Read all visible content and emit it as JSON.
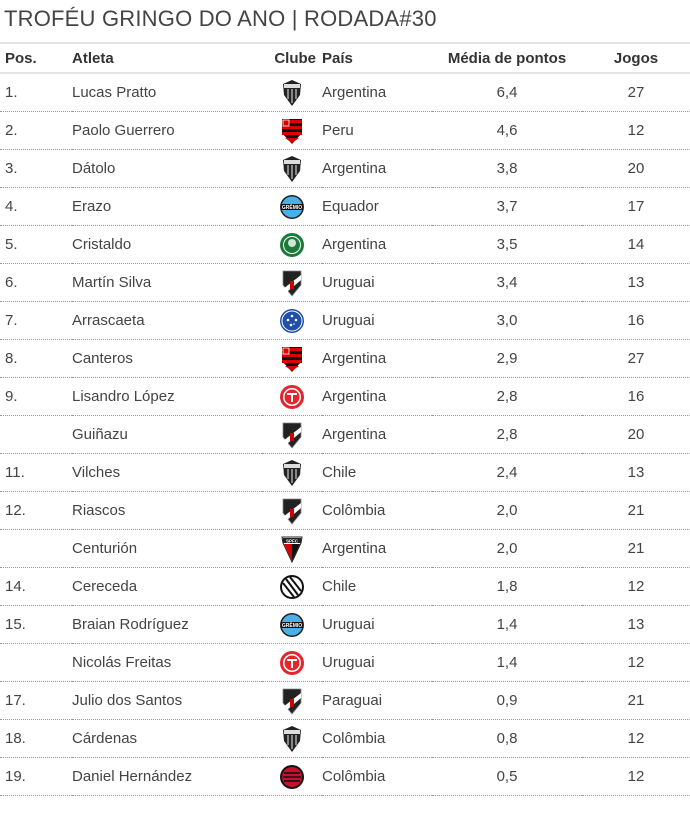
{
  "title": "TROFÉU GRINGO DO ANO | RODADA#30",
  "headers": {
    "pos": "Pos.",
    "athlete": "Atleta",
    "club": "Clube",
    "country": "País",
    "avg": "Média de pontos",
    "games": "Jogos"
  },
  "rows": [
    {
      "pos": "1.",
      "name": "Lucas Pratto",
      "club": "atletico-mg-crest",
      "country": "Argentina",
      "avg": "6,4",
      "games": "27"
    },
    {
      "pos": "2.",
      "name": "Paolo Guerrero",
      "club": "flamengo-crest",
      "country": "Peru",
      "avg": "4,6",
      "games": "12"
    },
    {
      "pos": "3.",
      "name": "Dátolo",
      "club": "atletico-mg-crest",
      "country": "Argentina",
      "avg": "3,8",
      "games": "20"
    },
    {
      "pos": "4.",
      "name": "Erazo",
      "club": "gremio-crest",
      "country": "Equador",
      "avg": "3,7",
      "games": "17"
    },
    {
      "pos": "5.",
      "name": "Cristaldo",
      "club": "palmeiras-crest",
      "country": "Argentina",
      "avg": "3,5",
      "games": "14"
    },
    {
      "pos": "6.",
      "name": "Martín Silva",
      "club": "vasco-crest",
      "country": "Uruguai",
      "avg": "3,4",
      "games": "13"
    },
    {
      "pos": "7.",
      "name": "Arrascaeta",
      "club": "cruzeiro-crest",
      "country": "Uruguai",
      "avg": "3,0",
      "games": "16"
    },
    {
      "pos": "8.",
      "name": "Canteros",
      "club": "flamengo-crest",
      "country": "Argentina",
      "avg": "2,9",
      "games": "27"
    },
    {
      "pos": "9.",
      "name": "Lisandro López",
      "club": "internacional-crest",
      "country": "Argentina",
      "avg": "2,8",
      "games": "16"
    },
    {
      "pos": "",
      "name": "Guiñazu",
      "club": "vasco-crest",
      "country": "Argentina",
      "avg": "2,8",
      "games": "20"
    },
    {
      "pos": "11.",
      "name": "Vilches",
      "club": "atletico-mg-crest",
      "country": "Chile",
      "avg": "2,4",
      "games": "13"
    },
    {
      "pos": "12.",
      "name": "Riascos",
      "club": "vasco-crest",
      "country": "Colômbia",
      "avg": "2,0",
      "games": "21"
    },
    {
      "pos": "",
      "name": "Centurión",
      "club": "sao-paulo-crest",
      "country": "Argentina",
      "avg": "2,0",
      "games": "21"
    },
    {
      "pos": "14.",
      "name": "Cereceda",
      "club": "figueirense-crest",
      "country": "Chile",
      "avg": "1,8",
      "games": "12"
    },
    {
      "pos": "15.",
      "name": "Braian Rodríguez",
      "club": "gremio-crest",
      "country": "Uruguai",
      "avg": "1,4",
      "games": "13"
    },
    {
      "pos": "",
      "name": "Nicolás Freitas",
      "club": "internacional-crest",
      "country": "Uruguai",
      "avg": "1,4",
      "games": "12"
    },
    {
      "pos": "17.",
      "name": "Julio dos Santos",
      "club": "vasco-crest",
      "country": "Paraguai",
      "avg": "0,9",
      "games": "21"
    },
    {
      "pos": "18.",
      "name": "Cárdenas",
      "club": "atletico-mg-crest",
      "country": "Colômbia",
      "avg": "0,8",
      "games": "12"
    },
    {
      "pos": "19.",
      "name": "Daniel Hernández",
      "club": "atletico-pr-crest",
      "country": "Colômbia",
      "avg": "0,5",
      "games": "12"
    }
  ]
}
